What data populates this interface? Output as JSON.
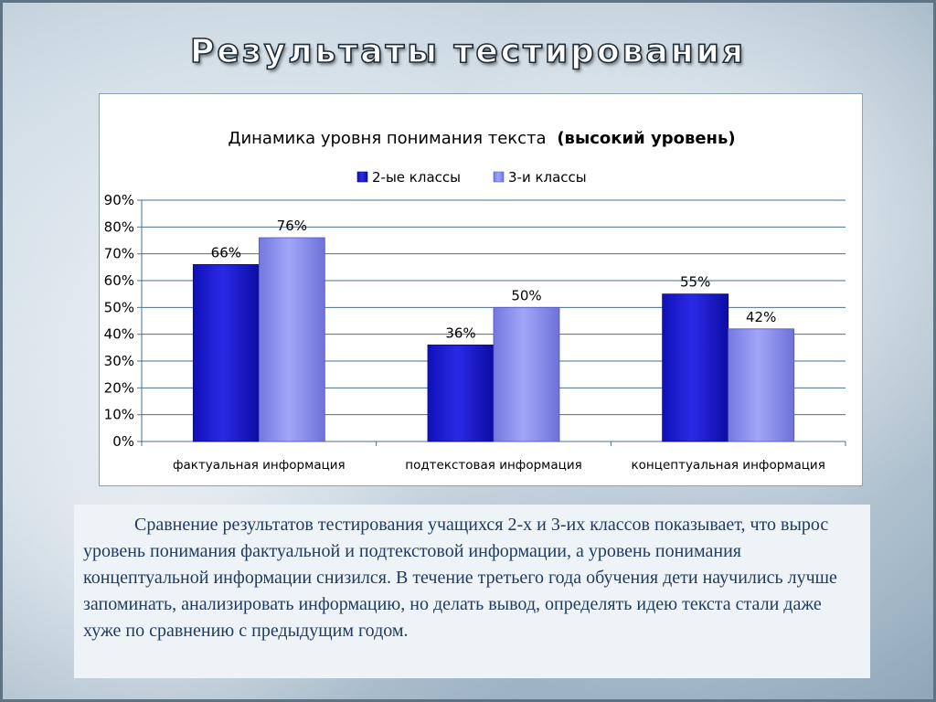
{
  "slide": {
    "title": "Результаты тестирования"
  },
  "chart_data": {
    "type": "bar",
    "title": "Динамика уровня понимания текста",
    "title_bold": "(высокий уровень)",
    "categories": [
      "фактуальная информация",
      "подтекстовая информация",
      "концептуальная информация"
    ],
    "series": [
      {
        "name": "2-ые классы",
        "values": [
          66,
          36,
          55
        ],
        "labels": [
          "66%",
          "36%",
          "55%"
        ],
        "color": "#1a1ad6"
      },
      {
        "name": "3-и классы",
        "values": [
          76,
          50,
          42
        ],
        "labels": [
          "76%",
          "50%",
          "42%"
        ],
        "color": "#8a8ef2"
      }
    ],
    "yticks": [
      "0%",
      "10%",
      "20%",
      "30%",
      "40%",
      "50%",
      "60%",
      "70%",
      "80%",
      "90%"
    ],
    "ylim": [
      0,
      90
    ],
    "grid": true,
    "legend_position": "top"
  },
  "description": {
    "text": "Сравнение результатов  тестирования  учащихся  2-х и 3-их классов показывает, что вырос  уровень понимания фактуальной и подтекстовой информации, а уровень понимания концептуальной информации снизился. В течение третьего года обучения дети научились лучше  запоминать, анализировать информацию, но делать вывод,  определять идею текста стали даже хуже по сравнению с предыдущим годом."
  }
}
